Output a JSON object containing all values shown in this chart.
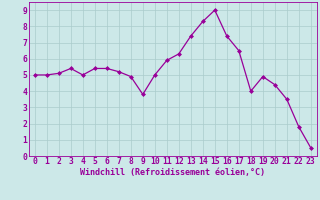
{
  "x": [
    0,
    1,
    2,
    3,
    4,
    5,
    6,
    7,
    8,
    9,
    10,
    11,
    12,
    13,
    14,
    15,
    16,
    17,
    18,
    19,
    20,
    21,
    22,
    23
  ],
  "y": [
    5.0,
    5.0,
    5.1,
    5.4,
    5.0,
    5.4,
    5.4,
    5.2,
    4.9,
    3.8,
    5.0,
    5.9,
    6.3,
    7.4,
    8.3,
    9.0,
    7.4,
    6.5,
    4.0,
    4.9,
    4.4,
    3.5,
    1.8,
    0.5
  ],
  "line_color": "#990099",
  "marker": "D",
  "markersize": 2.0,
  "linewidth": 0.9,
  "bg_color": "#cce8e8",
  "grid_color": "#aacccc",
  "xlabel": "Windchill (Refroidissement éolien,°C)",
  "xlabel_fontsize": 6.0,
  "tick_fontsize": 5.8,
  "ylim": [
    0,
    9.5
  ],
  "yticks": [
    0,
    1,
    2,
    3,
    4,
    5,
    6,
    7,
    8,
    9
  ],
  "xlim": [
    -0.5,
    23.5
  ],
  "xticks": [
    0,
    1,
    2,
    3,
    4,
    5,
    6,
    7,
    8,
    9,
    10,
    11,
    12,
    13,
    14,
    15,
    16,
    17,
    18,
    19,
    20,
    21,
    22,
    23
  ]
}
